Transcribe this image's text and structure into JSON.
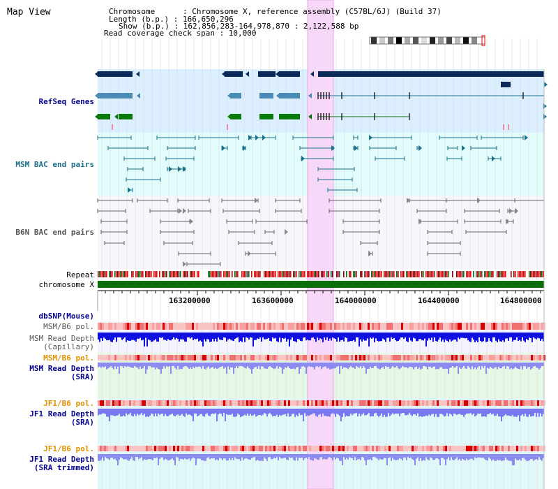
{
  "header": {
    "title": "Map View",
    "line1": "Chromosome      : Chromosome X, reference assembly (C57BL/6J) (Build 37)",
    "line2": "Length (b.p.) : 166,650,296",
    "line3": "Show (b.p.) : 162,856,283-164,978,870 : 2,122,588 bp",
    "line4": "Read coverage check span : 10,000"
  },
  "tracks": {
    "refseq": "RefSeq Genes",
    "msm_bac": "MSM BAC end pairs",
    "b6n_bac": "B6N BAC end pairs",
    "repeat": "Repeat",
    "chromosome": "chromosome X",
    "dbsnp": "dbSNP(Mouse)",
    "msm_b6_pol_1": "MSM/B6 pol.",
    "msm_depth_cap": "MSM Read Depth",
    "msm_depth_cap_sub": "(Capillary)",
    "msm_b6_pol_2": "MSM/B6 pol.",
    "msm_depth_sra": "MSM Read Depth",
    "msm_depth_sra_sub": "(SRA)",
    "jf1_pol_1": "JF1/B6 pol.",
    "jf1_depth_sra": "JF1 Read Depth",
    "jf1_depth_sra_sub": "(SRA)",
    "jf1_pol_2": "JF1/B6 pol.",
    "jf1_depth_trim": "JF1 Read Depth",
    "jf1_depth_trim_sub": "(SRA trimmed)"
  },
  "axis": {
    "ticks": [
      "163200000",
      "163600000",
      "164000000",
      "164400000",
      "164800000"
    ]
  },
  "colors": {
    "refseq_bg": "#dcefff",
    "msm_bac_bg": "#e2fbfb",
    "highlight": "#f8d8f8",
    "chromosome_bar": "#0a6e0a",
    "navy": "#00008b",
    "orange": "#e09000",
    "teal": "#1a6f8a"
  }
}
